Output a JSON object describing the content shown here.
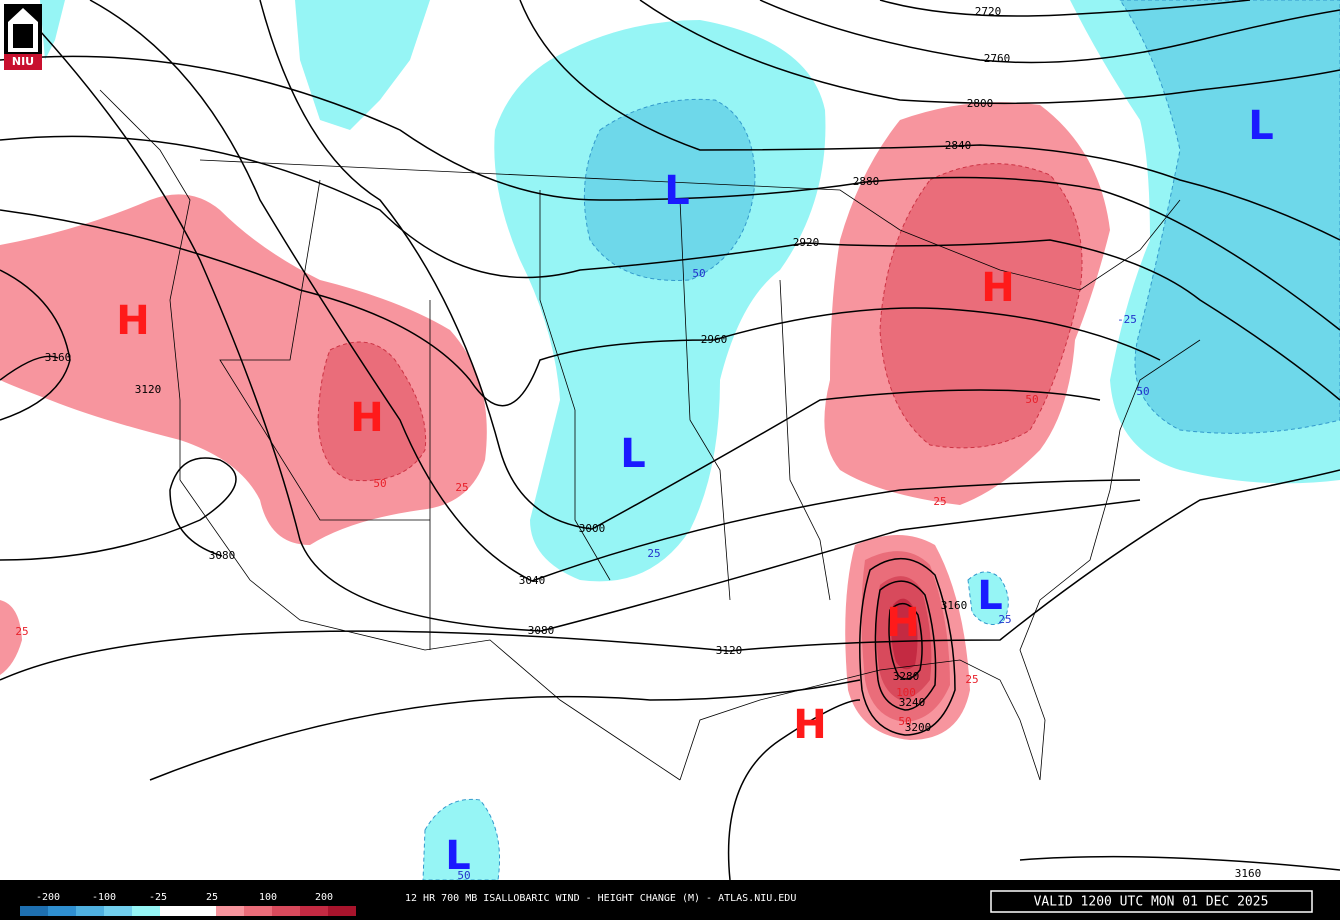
{
  "header": {
    "logo": "NIU"
  },
  "map": {
    "height_contour_labels": [
      "2720",
      "2760",
      "2800",
      "2840",
      "2880",
      "2920",
      "2960",
      "3000",
      "3040",
      "3080",
      "3120",
      "3160",
      "3120",
      "3080",
      "3160",
      "3160",
      "3200",
      "3240",
      "3280"
    ],
    "change_labels": [
      "50",
      "25",
      "25",
      "50",
      "25",
      "25",
      "50",
      "100",
      "50",
      "-25",
      "50",
      "25",
      "25",
      "50"
    ],
    "centers": [
      "H",
      "H",
      "H",
      "H",
      "H",
      "L",
      "L",
      "L",
      "L",
      "L"
    ]
  },
  "legend": {
    "labels": [
      "-200",
      "-100",
      "-25",
      "25",
      "100",
      "200"
    ]
  },
  "footer": {
    "title": "12 HR 700 MB ISALLOBARIC WIND - HEIGHT CHANGE (M) - ATLAS.NIU.EDU",
    "valid": "VALID 1200 UTC MON 01 DEC 2025"
  }
}
